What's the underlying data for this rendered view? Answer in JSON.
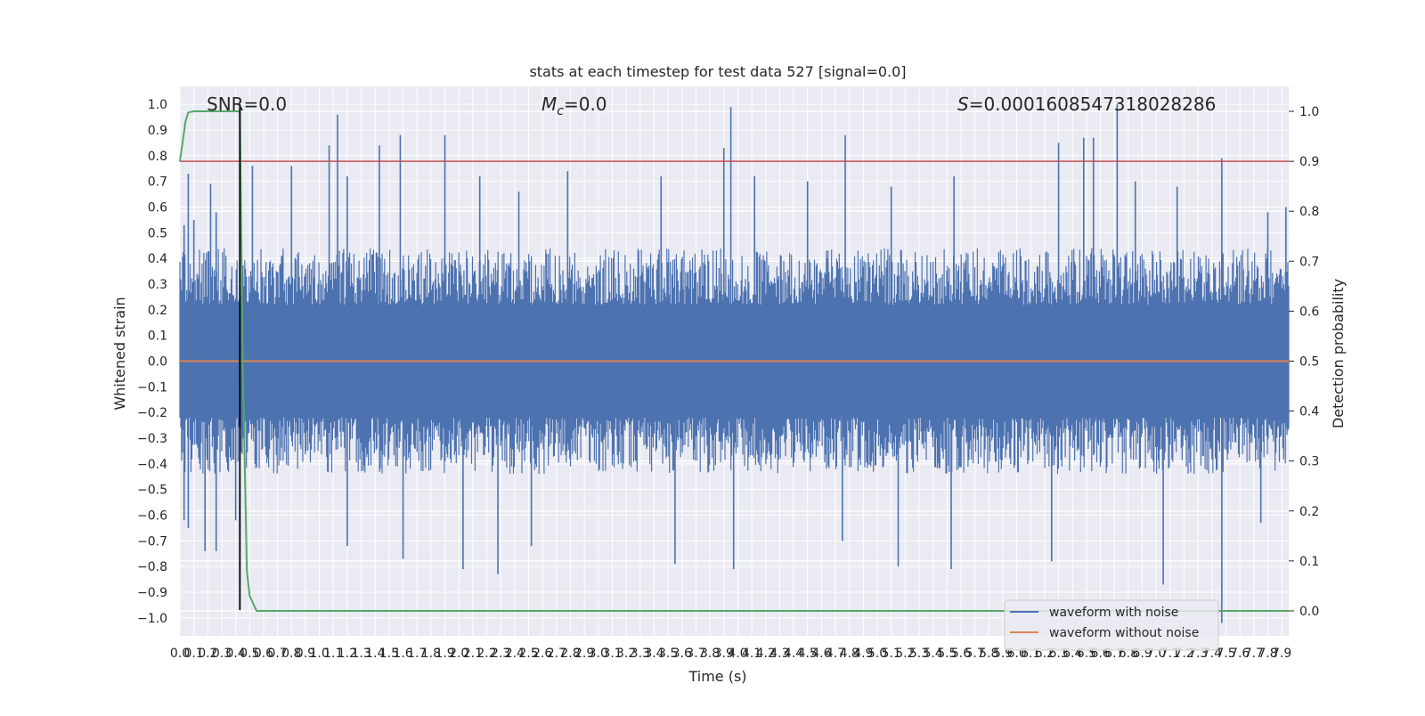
{
  "chart_data": {
    "type": "line",
    "title": "stats at each timestep for test data 527 [signal=0.0]",
    "xlabel": "Time (s)",
    "ylabel": "Whitened strain",
    "y2label": "Detection probability",
    "xlim": [
      0.0,
      7.95
    ],
    "ylim": [
      -1.07,
      1.07
    ],
    "y2lim": [
      -0.05,
      1.05
    ],
    "grid": true,
    "x_ticks": [
      0.0,
      0.1,
      0.2,
      0.3,
      0.4,
      0.5,
      0.6,
      0.7,
      0.8,
      0.9,
      1.0,
      1.1,
      1.2,
      1.3,
      1.4,
      1.5,
      1.6,
      1.7,
      1.8,
      1.9,
      2.0,
      2.1,
      2.2,
      2.3,
      2.4,
      2.5,
      2.6,
      2.7,
      2.8,
      2.9,
      3.0,
      3.1,
      3.2,
      3.3,
      3.4,
      3.5,
      3.6,
      3.7,
      3.8,
      3.9,
      4.0,
      4.1,
      4.2,
      4.3,
      4.4,
      4.5,
      4.6,
      4.7,
      4.8,
      4.9,
      5.0,
      5.1,
      5.2,
      5.3,
      5.4,
      5.5,
      5.6,
      5.7,
      5.8,
      5.9,
      6.0,
      6.1,
      6.2,
      6.3,
      6.4,
      6.5,
      6.6,
      6.7,
      6.8,
      6.9,
      7.0,
      7.1,
      7.2,
      7.3,
      7.4,
      7.5,
      7.6,
      7.7,
      7.8,
      7.9
    ],
    "x_tick_labels": [
      "0.0",
      "0.1",
      "0.2",
      "0.3",
      "0.4",
      "0.5",
      "0.6",
      "0.7",
      "0.8",
      "0.9",
      "1.0",
      "1.1",
      "1.2",
      "1.3",
      "1.4",
      "1.5",
      "1.6",
      "1.7",
      "1.8",
      "1.9",
      "2.0",
      "2.1",
      "2.2",
      "2.3",
      "2.4",
      "2.5",
      "2.6",
      "2.7",
      "2.8",
      "2.9",
      "3.0",
      "3.1",
      "3.2",
      "3.3",
      "3.4",
      "3.5",
      "3.6",
      "3.7",
      "3.8",
      "3.9",
      "4.0",
      "4.1",
      "4.2",
      "4.3",
      "4.4",
      "4.5",
      "4.6",
      "4.7",
      "4.8",
      "4.9",
      "5.0",
      "5.1",
      "5.2",
      "5.3",
      "5.4",
      "5.5",
      "5.6",
      "5.7",
      "5.8",
      "5.9",
      "6.0",
      "6.1",
      "6.2",
      "6.3",
      "6.4",
      "6.5",
      "6.6",
      "6.7",
      "6.8",
      "6.9",
      "7.0",
      "7.1",
      "7.2",
      "7.3",
      "7.4",
      "7.5",
      "7.6",
      "7.7",
      "7.8",
      "7.9"
    ],
    "y_ticks": [
      -1.0,
      -0.9,
      -0.8,
      -0.7,
      -0.6,
      -0.5,
      -0.4,
      -0.3,
      -0.2,
      -0.1,
      0.0,
      0.1,
      0.2,
      0.3,
      0.4,
      0.5,
      0.6,
      0.7,
      0.8,
      0.9,
      1.0
    ],
    "y_tick_labels": [
      "−1.0",
      "−0.9",
      "−0.8",
      "−0.7",
      "−0.6",
      "−0.5",
      "−0.4",
      "−0.3",
      "−0.2",
      "−0.1",
      "0.0",
      "0.1",
      "0.2",
      "0.3",
      "0.4",
      "0.5",
      "0.6",
      "0.7",
      "0.8",
      "0.9",
      "1.0"
    ],
    "y2_ticks": [
      0.0,
      0.1,
      0.2,
      0.3,
      0.4,
      0.5,
      0.6,
      0.7,
      0.8,
      0.9,
      1.0
    ],
    "y2_tick_labels": [
      "0.0",
      "0.1",
      "0.2",
      "0.3",
      "0.4",
      "0.5",
      "0.6",
      "0.7",
      "0.8",
      "0.9",
      "1.0"
    ],
    "series": [
      {
        "name": "waveform with noise",
        "color": "#4c72b0",
        "axis": "left",
        "note_envelope": "dense noise, typical amplitude about ±0.4, spikes to about ±1.0",
        "x": [
          0.0,
          7.95
        ],
        "envelope_typical": [
          -0.4,
          0.4
        ],
        "spikes": [
          {
            "x": 0.03,
            "y": 0.53
          },
          {
            "x": 0.06,
            "y": 0.73
          },
          {
            "x": 0.1,
            "y": 0.55
          },
          {
            "x": 0.22,
            "y": 0.69
          },
          {
            "x": 0.26,
            "y": 0.58
          },
          {
            "x": 0.52,
            "y": 0.76
          },
          {
            "x": 0.8,
            "y": 0.76
          },
          {
            "x": 1.07,
            "y": 0.84
          },
          {
            "x": 1.13,
            "y": 0.96
          },
          {
            "x": 1.2,
            "y": 0.72
          },
          {
            "x": 1.43,
            "y": 0.84
          },
          {
            "x": 1.58,
            "y": 0.88
          },
          {
            "x": 1.9,
            "y": 0.88
          },
          {
            "x": 2.15,
            "y": 0.72
          },
          {
            "x": 2.43,
            "y": 0.66
          },
          {
            "x": 2.78,
            "y": 0.74
          },
          {
            "x": 3.45,
            "y": 0.72
          },
          {
            "x": 3.9,
            "y": 0.83
          },
          {
            "x": 3.95,
            "y": 0.99
          },
          {
            "x": 4.12,
            "y": 0.72
          },
          {
            "x": 4.5,
            "y": 0.7
          },
          {
            "x": 4.77,
            "y": 0.88
          },
          {
            "x": 5.1,
            "y": 0.68
          },
          {
            "x": 5.55,
            "y": 0.72
          },
          {
            "x": 6.3,
            "y": 0.85
          },
          {
            "x": 6.48,
            "y": 0.87
          },
          {
            "x": 6.55,
            "y": 0.87
          },
          {
            "x": 6.72,
            "y": 1.0
          },
          {
            "x": 6.85,
            "y": 0.7
          },
          {
            "x": 7.15,
            "y": 0.68
          },
          {
            "x": 7.47,
            "y": 0.79
          },
          {
            "x": 7.8,
            "y": 0.58
          },
          {
            "x": 7.93,
            "y": 0.6
          },
          {
            "x": 0.03,
            "y": -0.62
          },
          {
            "x": 0.06,
            "y": -0.65
          },
          {
            "x": 0.18,
            "y": -0.74
          },
          {
            "x": 0.26,
            "y": -0.74
          },
          {
            "x": 0.4,
            "y": -0.62
          },
          {
            "x": 1.2,
            "y": -0.72
          },
          {
            "x": 1.6,
            "y": -0.77
          },
          {
            "x": 2.03,
            "y": -0.81
          },
          {
            "x": 2.28,
            "y": -0.83
          },
          {
            "x": 2.52,
            "y": -0.72
          },
          {
            "x": 3.55,
            "y": -0.79
          },
          {
            "x": 3.97,
            "y": -0.81
          },
          {
            "x": 4.75,
            "y": -0.7
          },
          {
            "x": 5.15,
            "y": -0.8
          },
          {
            "x": 5.53,
            "y": -0.81
          },
          {
            "x": 6.25,
            "y": -0.78
          },
          {
            "x": 7.05,
            "y": -0.87
          },
          {
            "x": 7.47,
            "y": -1.02
          },
          {
            "x": 7.75,
            "y": -0.63
          }
        ]
      },
      {
        "name": "waveform without noise",
        "color": "#dd8452",
        "axis": "left",
        "x": [
          0.0,
          7.95
        ],
        "y": [
          0.0,
          0.0
        ]
      },
      {
        "name": "",
        "color": "#55a868",
        "axis": "right",
        "x": [
          0.0,
          0.04,
          0.06,
          0.1,
          0.2,
          0.3,
          0.43,
          0.45,
          0.48,
          0.5,
          0.55,
          0.6,
          7.95
        ],
        "y": [
          0.9,
          0.98,
          0.998,
          1.0,
          1.0,
          1.0,
          1.0,
          0.5,
          0.08,
          0.03,
          0.0,
          0.0,
          0.0
        ]
      }
    ],
    "hlines": [
      {
        "y": 0.9,
        "axis": "right",
        "color": "#c44e52"
      }
    ],
    "vlines": [
      {
        "x": 0.43,
        "color": "#000000",
        "ymin": -0.97,
        "ymax": 1.0
      }
    ],
    "annotations": {
      "snr": "SNR=0.0",
      "mc_symbol": "M",
      "mc_sub": "c",
      "mc_value": "=0.0",
      "s_symbol": "S",
      "s_value": "=0.0001608547318028286"
    },
    "legend": {
      "placement": "lower-right",
      "entries": [
        {
          "label": "waveform with noise",
          "color": "#4c72b0"
        },
        {
          "label": "waveform without noise",
          "color": "#dd8452"
        }
      ]
    },
    "colors": {
      "axes_bg": "#eaeaf2",
      "grid": "#ffffff",
      "noise": "#4c72b0",
      "clean": "#dd8452",
      "prob": "#55a868",
      "threshold": "#c44e52",
      "marker": "#000000"
    }
  }
}
